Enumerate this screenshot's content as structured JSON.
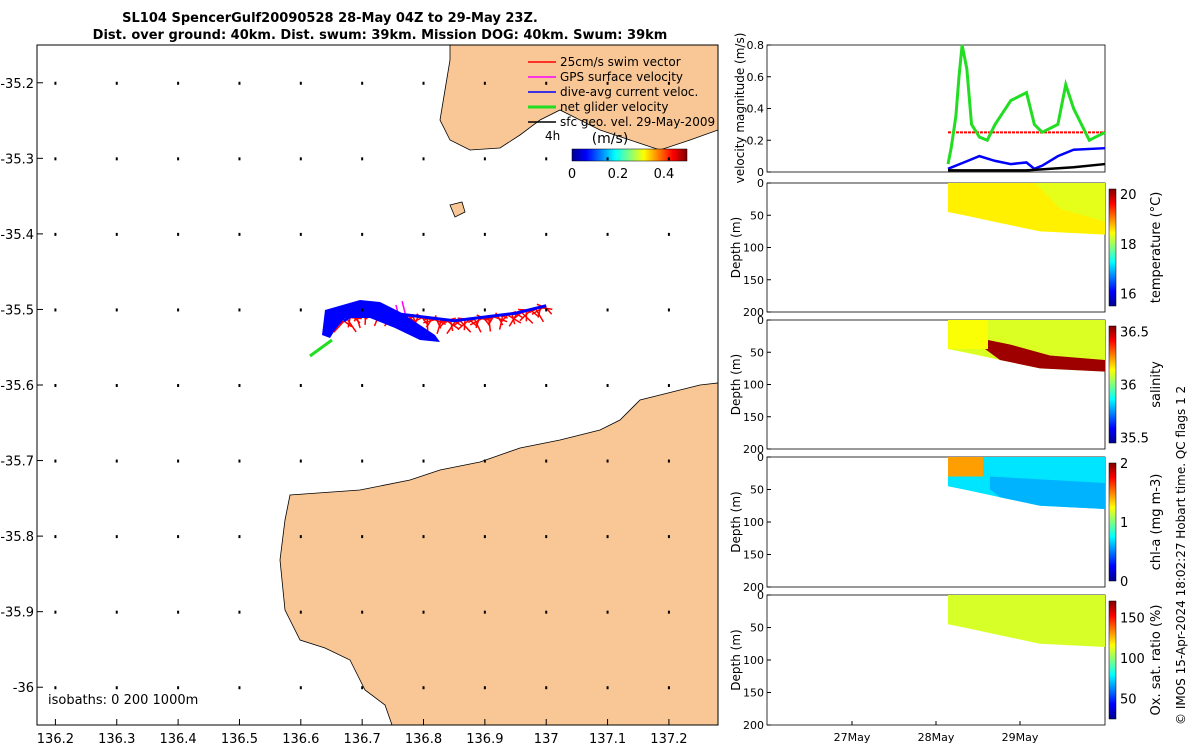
{
  "title": {
    "line1": "SL104 SpencerGulf20090528 28-May 04Z to 29-May 23Z.",
    "line2": "Dist. over ground: 40km. Dist. swum: 39km. Mission DOG: 40km. Swum: 39km"
  },
  "colors": {
    "land": "#f9c796",
    "swim": "#ff0000",
    "gps": "#ff00ff",
    "dive_avg": "#0000ff",
    "net_glider": "#22dd22",
    "sfc_geo": "#000000"
  },
  "map": {
    "xlim": [
      136.17,
      137.28
    ],
    "ylim": [
      -36.05,
      -35.15
    ],
    "xticks": [
      "136.2",
      "136.3",
      "136.4",
      "136.5",
      "136.6",
      "136.7",
      "136.8",
      "136.9",
      "137",
      "137.1",
      "137.2"
    ],
    "yticks": [
      "-35.2",
      "-35.3",
      "-35.4",
      "-35.5",
      "-35.6",
      "-35.7",
      "-35.8",
      "-35.9",
      "-36"
    ],
    "legend": [
      {
        "label": "25cm/s swim vector",
        "color": "#ff0000"
      },
      {
        "label": "GPS surface velocity",
        "color": "#ff00ff"
      },
      {
        "label": "dive-avg current veloc.",
        "color": "#0000ff"
      },
      {
        "label": "net glider velocity",
        "color": "#22dd22"
      },
      {
        "label": "sfc geo. vel. 29-May-2009",
        "color": "#000000"
      }
    ],
    "scale_label": "4h",
    "colorbar": {
      "label": "(m/s)",
      "ticks": [
        "0",
        "0.2",
        "0.4"
      ],
      "range": [
        0,
        0.5
      ]
    },
    "isobaths": "isobaths: 0   200  1000m",
    "glider_track": [
      [
        136.67,
        -35.515
      ],
      [
        136.7,
        -35.5
      ],
      [
        136.75,
        -35.505
      ],
      [
        136.8,
        -35.51
      ],
      [
        136.85,
        -35.515
      ],
      [
        136.9,
        -35.51
      ],
      [
        136.95,
        -35.505
      ],
      [
        137.0,
        -35.495
      ]
    ]
  },
  "panels": {
    "time_ticks": [
      "27May",
      "28May",
      "29May"
    ],
    "velocity": {
      "ylabel": "velocity magnitude (m/s)",
      "yticks": [
        "0",
        "0.2",
        "0.4",
        "0.6",
        "0.8"
      ],
      "ylim": [
        0,
        0.8
      ],
      "swim_level": 0.25,
      "net_glider": [
        [
          0,
          0.05
        ],
        [
          0.02,
          0.15
        ],
        [
          0.05,
          0.35
        ],
        [
          0.07,
          0.6
        ],
        [
          0.09,
          0.8
        ],
        [
          0.12,
          0.65
        ],
        [
          0.15,
          0.3
        ],
        [
          0.2,
          0.22
        ],
        [
          0.25,
          0.2
        ],
        [
          0.3,
          0.3
        ],
        [
          0.4,
          0.45
        ],
        [
          0.5,
          0.5
        ],
        [
          0.55,
          0.3
        ],
        [
          0.6,
          0.25
        ],
        [
          0.7,
          0.3
        ],
        [
          0.75,
          0.55
        ],
        [
          0.8,
          0.4
        ],
        [
          0.85,
          0.3
        ],
        [
          0.9,
          0.2
        ],
        [
          1.0,
          0.25
        ]
      ],
      "dive_avg": [
        [
          0,
          0.02
        ],
        [
          0.1,
          0.06
        ],
        [
          0.2,
          0.1
        ],
        [
          0.3,
          0.07
        ],
        [
          0.4,
          0.05
        ],
        [
          0.5,
          0.06
        ],
        [
          0.55,
          0.02
        ],
        [
          0.6,
          0.04
        ],
        [
          0.7,
          0.1
        ],
        [
          0.8,
          0.14
        ],
        [
          1.0,
          0.15
        ]
      ],
      "sfc_geo": [
        [
          0,
          0.01
        ],
        [
          0.2,
          0.01
        ],
        [
          0.5,
          0.01
        ],
        [
          0.8,
          0.03
        ],
        [
          1.0,
          0.05
        ]
      ]
    },
    "temperature": {
      "cbar_label": "temperature (°C)",
      "cticks": [
        "20",
        "18",
        "16"
      ],
      "crange": [
        15.5,
        20.2
      ],
      "value": 18.5
    },
    "salinity": {
      "cbar_label": "salinity",
      "cticks": [
        "36.5",
        "36",
        "35.5"
      ],
      "crange": [
        35.45,
        36.55
      ],
      "value": 36.1
    },
    "chla": {
      "cbar_label": "chl-a (mg m-3)",
      "cticks": [
        "2",
        "1",
        "0"
      ],
      "crange": [
        0,
        2
      ],
      "value": 0.7
    },
    "oxygen": {
      "cbar_label": "Ox. sat. ratio (%)",
      "cticks": [
        "150",
        "100",
        "50"
      ],
      "crange": [
        25,
        170
      ],
      "value": 110
    },
    "depth_label": "Depth (m)",
    "depth_ticks": [
      "0",
      "50",
      "100",
      "150",
      "200"
    ]
  },
  "footer": "© IMOS 15-Apr-2024 18:02:27 Hobart time. QC flags 1  2"
}
